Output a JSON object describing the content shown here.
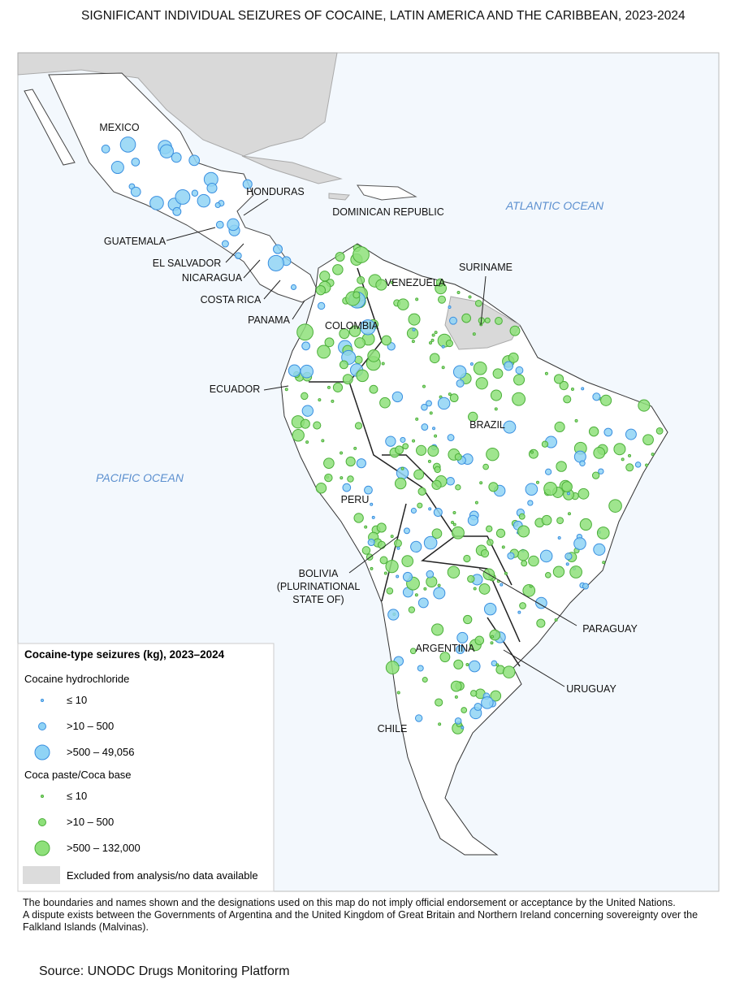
{
  "title": "SIGNIFICANT INDIVIDUAL SEIZURES OF COCAINE, LATIN AMERICA AND THE CARIBBEAN, 2023-2024",
  "oceans": [
    "ATLANTIC OCEAN",
    "PACIFIC OCEAN"
  ],
  "countries": [
    "MEXICO",
    "HONDURAS",
    "DOMINICAN REPUBLIC",
    "GUATEMALA",
    "EL SALVADOR",
    "NICARAGUA",
    "COSTA RICA",
    "PANAMA",
    "SURINAME",
    "VENEZUELA",
    "COLOMBIA",
    "ECUADOR",
    "BRAZIL",
    "PERU",
    "BOLIVIA (PLURINATIONAL STATE OF)",
    "PARAGUAY",
    "ARGENTINA",
    "URUGUAY",
    "CHILE"
  ],
  "legend": {
    "title": "Cocaine-type seizures (kg), 2023–2024",
    "groups": [
      {
        "name": "Cocaine hydrochloride",
        "items": [
          "≤ 10",
          ">10 – 500",
          ">500 – 49,056"
        ]
      },
      {
        "name": "Coca paste/Coca base",
        "items": [
          "≤ 10",
          ">10 – 500",
          ">500 – 132,000"
        ]
      }
    ],
    "excluded": "Excluded from analysis/no data available"
  },
  "footnotes": [
    "The boundaries and names shown and the designations used on this map do not imply official endorsement or acceptance by the United Nations.",
    "A dispute exists between the Governments of Argentina and the United Kingdom of Great Britain and Northern Ireland concerning sovereignty over the Falkland Islands (Malvinas)."
  ],
  "source": "Source: UNODC Drugs Monitoring Platform"
}
